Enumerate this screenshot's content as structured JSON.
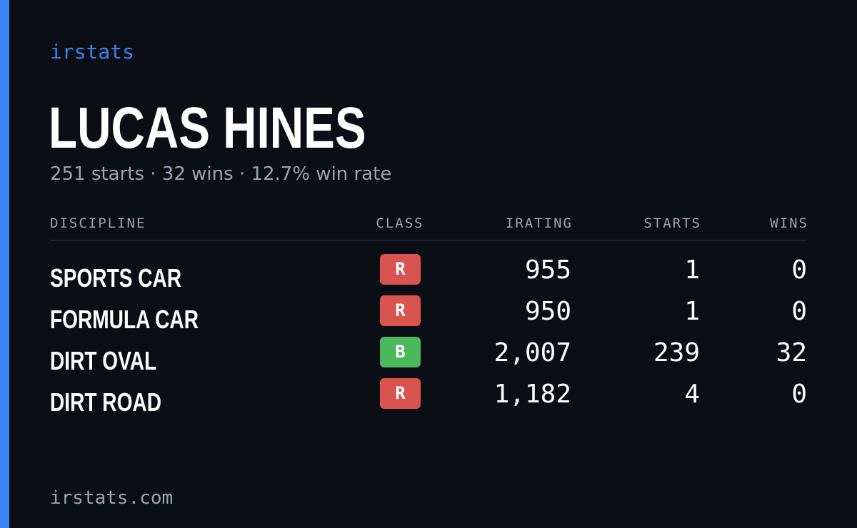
{
  "brand": "irstats",
  "player": {
    "name": "LUCAS HINES",
    "summary": "251 starts · 32 wins · 12.7% win rate"
  },
  "table": {
    "headers": {
      "discipline": "DISCIPLINE",
      "class": "CLASS",
      "irating": "IRATING",
      "starts": "STARTS",
      "wins": "WINS"
    },
    "rows": [
      {
        "discipline": "SPORTS CAR",
        "class": "R",
        "class_color": "#d9534f",
        "irating": "955",
        "starts": "1",
        "wins": "0"
      },
      {
        "discipline": "FORMULA CAR",
        "class": "R",
        "class_color": "#d9534f",
        "irating": "950",
        "starts": "1",
        "wins": "0"
      },
      {
        "discipline": "DIRT OVAL",
        "class": "B",
        "class_color": "#4cb85c",
        "irating": "2,007",
        "starts": "239",
        "wins": "32"
      },
      {
        "discipline": "DIRT ROAD",
        "class": "R",
        "class_color": "#d9534f",
        "irating": "1,182",
        "starts": "4",
        "wins": "0"
      }
    ]
  },
  "footer": "irstats.com",
  "colors": {
    "background": "#0b0e15",
    "accent": "#3b82f6",
    "muted_text": "#9aa3b5"
  }
}
